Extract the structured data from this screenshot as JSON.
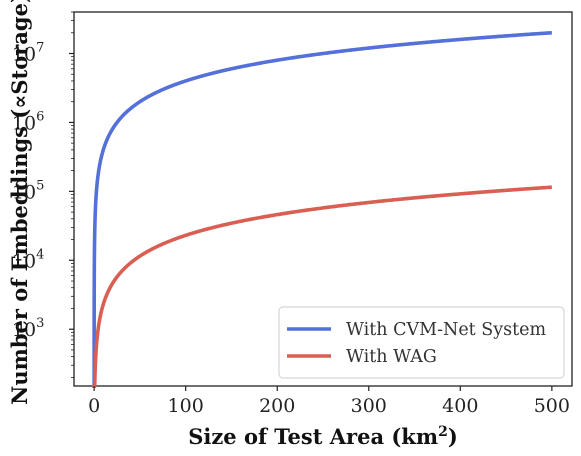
{
  "chart_data": {
    "type": "line",
    "xlabel": "Size of Test Area (km",
    "xlabel_superscript": "2",
    "xlabel_suffix": ")",
    "ylabel": "Number of Embeddings (∝Storage)",
    "x_ticks": [
      "0",
      "100",
      "200",
      "300",
      "400",
      "500"
    ],
    "x_tick_values": [
      0,
      100,
      200,
      300,
      400,
      500
    ],
    "y_ticks": [
      {
        "base": "10",
        "exp": "3",
        "value": 1000
      },
      {
        "base": "10",
        "exp": "4",
        "value": 10000
      },
      {
        "base": "10",
        "exp": "5",
        "value": 100000
      },
      {
        "base": "10",
        "exp": "6",
        "value": 1000000
      },
      {
        "base": "10",
        "exp": "7",
        "value": 10000000
      }
    ],
    "xlim": [
      -22,
      522
    ],
    "ylim": [
      150,
      40000000
    ],
    "y_scale": "log",
    "grid": false,
    "legend_position": "bottom-right",
    "series": [
      {
        "name": "With CVM-Net System",
        "color": "#5470d9",
        "per_km2": 40000
      },
      {
        "name": "With WAG",
        "color": "#d95f52",
        "per_km2": 230
      }
    ]
  }
}
